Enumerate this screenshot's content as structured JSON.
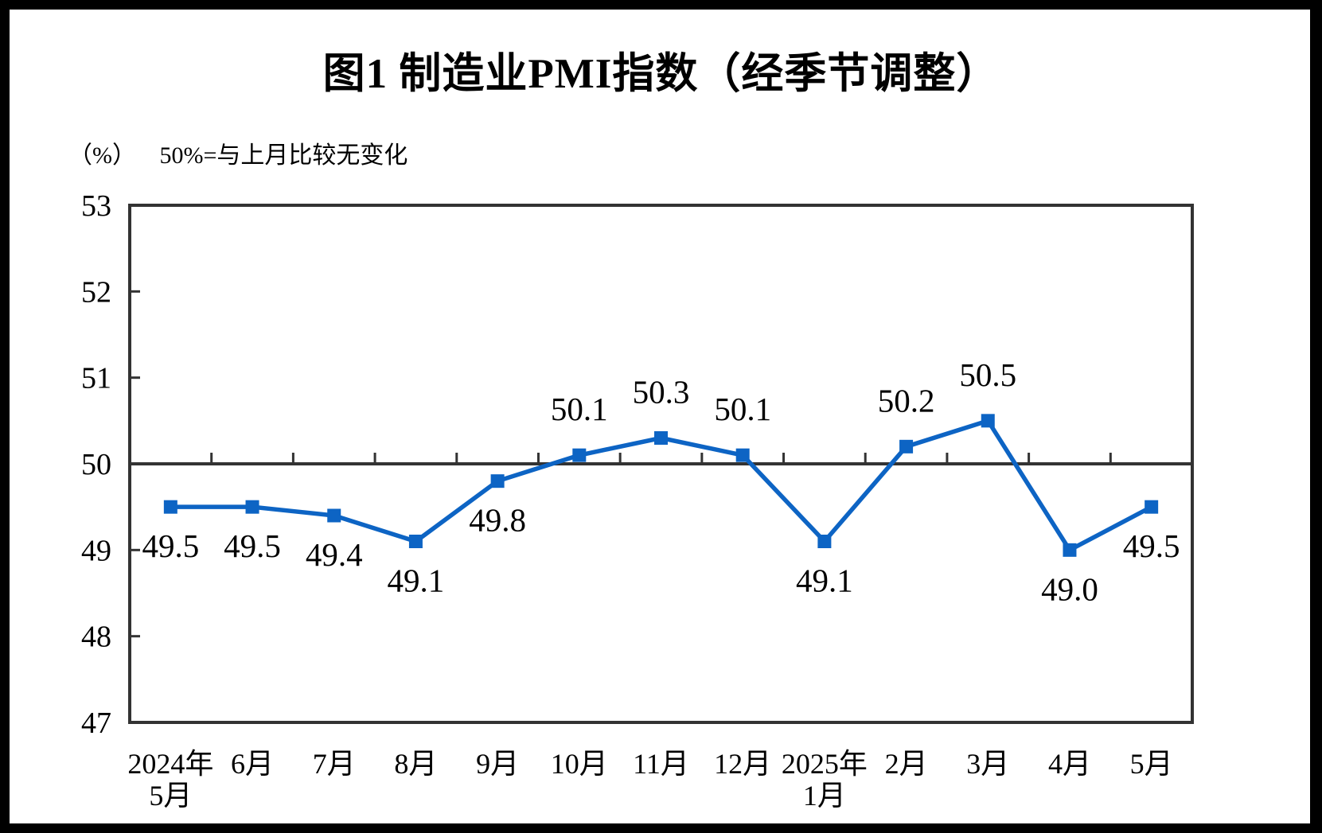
{
  "chart_data": {
    "type": "line",
    "title": "图1 制造业PMI指数（经季节调整）",
    "unit_label": "（%）",
    "note": "50%=与上月比较无变化",
    "categories": [
      "2024年5月",
      "6月",
      "7月",
      "8月",
      "9月",
      "10月",
      "11月",
      "12月",
      "2025年1月",
      "2月",
      "3月",
      "4月",
      "5月"
    ],
    "category_lines": [
      [
        "2024年",
        "5月"
      ],
      [
        "6月"
      ],
      [
        "7月"
      ],
      [
        "8月"
      ],
      [
        "9月"
      ],
      [
        "10月"
      ],
      [
        "11月"
      ],
      [
        "12月"
      ],
      [
        "2025年",
        "1月"
      ],
      [
        "2月"
      ],
      [
        "3月"
      ],
      [
        "4月"
      ],
      [
        "5月"
      ]
    ],
    "series": [
      {
        "name": "制造业PMI",
        "values": [
          49.5,
          49.5,
          49.4,
          49.1,
          49.8,
          50.1,
          50.3,
          50.1,
          49.1,
          50.2,
          50.5,
          49.0,
          49.5
        ]
      }
    ],
    "data_labels": [
      "49.5",
      "49.5",
      "49.4",
      "49.1",
      "49.8",
      "50.1",
      "50.3",
      "50.1",
      "49.1",
      "50.2",
      "50.5",
      "49.0",
      "49.5"
    ],
    "label_positions": [
      "below",
      "below",
      "below",
      "below",
      "below",
      "above",
      "above",
      "above",
      "below",
      "above",
      "above",
      "below",
      "below"
    ],
    "ylim": [
      47,
      53
    ],
    "ytick_labels": [
      "47",
      "48",
      "49",
      "50",
      "51",
      "52",
      "53"
    ],
    "reference_line": 50,
    "grid": false,
    "legend": "none",
    "marker": "square",
    "colors": {
      "line": "#0d64c4",
      "marker": "#0d64c4",
      "axis": "#333333",
      "text": "#000000",
      "plot_background": "#ffffff",
      "page_border": "#000000"
    }
  }
}
